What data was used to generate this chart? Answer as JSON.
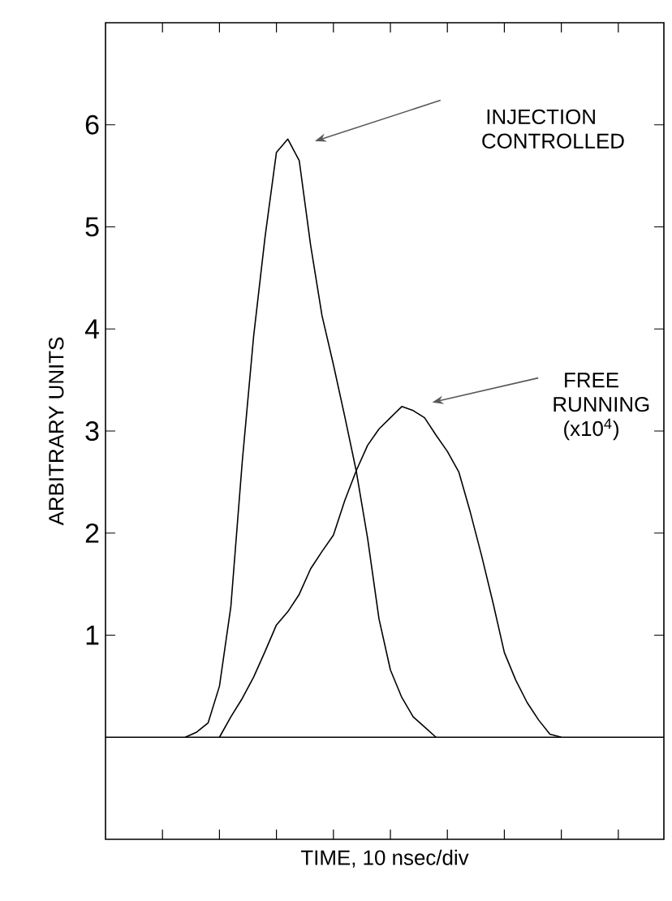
{
  "chart_data": {
    "type": "line",
    "xlabel": "TIME, 10 nsec/div",
    "ylabel": "ARBITRARY UNITS",
    "categories": [
      null,
      null,
      null,
      null,
      null,
      null,
      null,
      null,
      null,
      null,
      null,
      null,
      null,
      null,
      null,
      null,
      null,
      null,
      null,
      null,
      null,
      null,
      null,
      null,
      null,
      null,
      null,
      null,
      null,
      null,
      null,
      null,
      null,
      null,
      null,
      null,
      null,
      null,
      null,
      null,
      null,
      null,
      null,
      null,
      null,
      null,
      null,
      null,
      null,
      null
    ],
    "ylim": [
      -1,
      7
    ],
    "yticks": [
      1,
      2,
      3,
      4,
      5,
      6
    ],
    "tick_labels": "y",
    "grid": false,
    "marker": "none",
    "line_style": "solid",
    "series": [
      {
        "color": "#000000",
        "values": [
          null,
          null,
          null,
          null,
          null,
          null,
          null,
          0,
          0.05,
          0.14,
          0.5,
          1.28,
          2.7,
          3.93,
          4.9,
          5.73,
          5.86,
          5.65,
          4.82,
          4.13,
          3.65,
          3.14,
          2.61,
          1.95,
          1.16,
          0.66,
          0.39,
          0.2,
          0.1,
          0,
          null,
          null,
          null,
          null,
          null,
          null,
          null,
          null,
          null,
          null,
          null,
          null,
          null,
          null,
          null,
          null,
          null,
          null,
          null,
          null
        ]
      },
      {
        "color": "#000000",
        "values": [
          null,
          null,
          null,
          null,
          null,
          null,
          null,
          null,
          null,
          null,
          0,
          0.2,
          0.38,
          0.59,
          0.84,
          1.1,
          1.23,
          1.4,
          1.65,
          1.82,
          1.98,
          2.32,
          2.61,
          2.86,
          3.02,
          3.13,
          3.24,
          3.2,
          3.13,
          2.96,
          2.8,
          2.6,
          2.21,
          1.78,
          1.32,
          0.83,
          0.56,
          0.34,
          0.17,
          0.03,
          0,
          null,
          null,
          null,
          null,
          null,
          null,
          null,
          null,
          null
        ]
      }
    ],
    "ref_lines": [
      {
        "axis": "y",
        "value": 0,
        "color": "#000000",
        "line_style": "solid"
      }
    ],
    "annotations": [
      "INJECTION CONTROLLED",
      "FREE RUNNING (x10$^{4}$)"
    ]
  }
}
